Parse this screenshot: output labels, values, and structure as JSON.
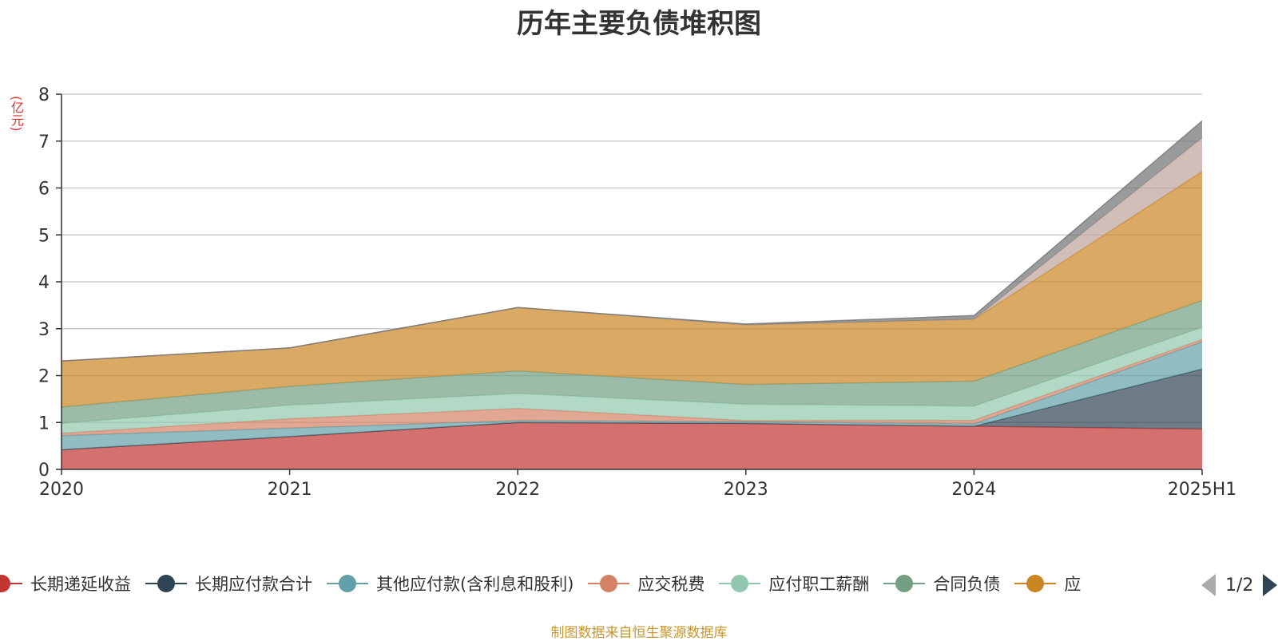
{
  "title": "历年主要负债堆积图",
  "unit_label": "(亿元)",
  "source": "制图数据来自恒生聚源数据库",
  "legend_pager": "1/2",
  "chart_data": {
    "type": "area",
    "stacked": true,
    "title": "历年主要负债堆积图",
    "ylabel": "(亿元)",
    "xlabel": "",
    "ylim": [
      0,
      8
    ],
    "yticks": [
      0,
      1,
      2,
      3,
      4,
      5,
      6,
      7,
      8
    ],
    "grid": true,
    "legend_position": "bottom",
    "categories": [
      "2020",
      "2021",
      "2022",
      "2023",
      "2024",
      "2025H1"
    ],
    "series": [
      {
        "name": "长期递延收益",
        "color": "#c23531",
        "values": [
          0.42,
          0.7,
          1.0,
          0.98,
          0.92,
          0.86
        ]
      },
      {
        "name": "长期应付款合计",
        "color": "#2f4554",
        "values": [
          0.0,
          0.0,
          0.0,
          0.0,
          0.0,
          1.28
        ]
      },
      {
        "name": "其他应付款(含利息和股利)",
        "color": "#61a0a8",
        "values": [
          0.3,
          0.18,
          0.04,
          0.04,
          0.05,
          0.58
        ]
      },
      {
        "name": "应交税费",
        "color": "#d48265",
        "values": [
          0.05,
          0.2,
          0.26,
          0.02,
          0.08,
          0.05
        ]
      },
      {
        "name": "应付职工薪酬",
        "color": "#91c7ae",
        "values": [
          0.21,
          0.29,
          0.32,
          0.35,
          0.3,
          0.26
        ]
      },
      {
        "name": "合同负债",
        "color": "#749f83",
        "values": [
          0.35,
          0.4,
          0.48,
          0.42,
          0.53,
          0.57
        ]
      },
      {
        "name": "",
        "color": "#ca8622",
        "values": [
          0.98,
          0.82,
          1.35,
          1.27,
          1.32,
          2.75
        ]
      },
      {
        "name": "",
        "color": "#bda29a",
        "values": [
          0.0,
          0.0,
          0.0,
          0.0,
          0.0,
          0.72
        ]
      },
      {
        "name": "",
        "color": "#6e7074",
        "values": [
          0.0,
          0.0,
          0.0,
          0.02,
          0.08,
          0.36
        ]
      }
    ]
  },
  "legend_visible": [
    {
      "label": "长期递延收益",
      "color": "#c23531"
    },
    {
      "label": "长期应付款合计",
      "color": "#2f4554"
    },
    {
      "label": "其他应付款(含利息和股利)",
      "color": "#61a0a8"
    },
    {
      "label": "应交税费",
      "color": "#d48265"
    },
    {
      "label": "应付职工薪酬",
      "color": "#91c7ae"
    },
    {
      "label": "合同负债",
      "color": "#749f83"
    },
    {
      "label": "应",
      "color": "#ca8622"
    }
  ]
}
